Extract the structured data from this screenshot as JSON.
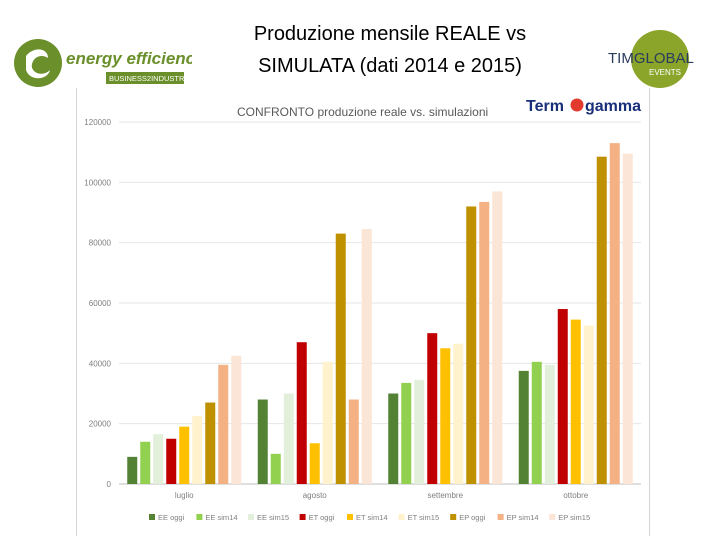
{
  "slide": {
    "title_line1": "Produzione mensile REALE vs",
    "title_line2": "SIMULATA (dati 2014 e 2015)"
  },
  "logos": {
    "energy_efficiency": {
      "name": "energy efficiency",
      "tagline": "BUSINESS2INDUSTRY",
      "color": "#6a8f2b"
    },
    "tim_global_events": {
      "line1": "TIMGLOBAL",
      "line2": "EVENTS",
      "color": "#8aa52a"
    },
    "termogamma": {
      "text_a": "Term",
      "text_b": "gamma",
      "color": "#1a2f7a",
      "accent": "#e23b2e"
    }
  },
  "chart_data": {
    "type": "bar",
    "title": "CONFRONTO produzione reale vs. simulazioni",
    "categories": [
      "luglio",
      "agosto",
      "settembre",
      "ottobre"
    ],
    "ylim": [
      0,
      120000
    ],
    "yticks": [
      0,
      20000,
      40000,
      60000,
      80000,
      100000,
      120000
    ],
    "ytick_labels": [
      "0",
      "20000",
      "40000",
      "60000",
      "80000",
      "100000",
      "120000"
    ],
    "grid": true,
    "legend_position": "bottom",
    "series": [
      {
        "name": "EE oggi",
        "color": "#548235",
        "values": [
          9000,
          28000,
          30000,
          37500
        ]
      },
      {
        "name": "EE sim14",
        "color": "#92d050",
        "values": [
          14000,
          10000,
          33500,
          40500
        ]
      },
      {
        "name": "EE sim15",
        "color": "#e2efda",
        "values": [
          16500,
          30000,
          34500,
          39500
        ]
      },
      {
        "name": "ET oggi",
        "color": "#c00000",
        "values": [
          15000,
          47000,
          50000,
          58000
        ]
      },
      {
        "name": "ET sim14",
        "color": "#ffc000",
        "values": [
          19000,
          13500,
          45000,
          54500
        ]
      },
      {
        "name": "ET sim15",
        "color": "#fff2cc",
        "values": [
          22500,
          40500,
          46500,
          52500
        ]
      },
      {
        "name": "EP oggi",
        "color": "#bf9000",
        "values": [
          27000,
          83000,
          92000,
          108500
        ]
      },
      {
        "name": "EP sim14",
        "color": "#f4b183",
        "values": [
          39500,
          28000,
          93500,
          113000
        ]
      },
      {
        "name": "EP sim15",
        "color": "#fbe5d6",
        "values": [
          42500,
          84500,
          97000,
          109500
        ]
      }
    ]
  }
}
